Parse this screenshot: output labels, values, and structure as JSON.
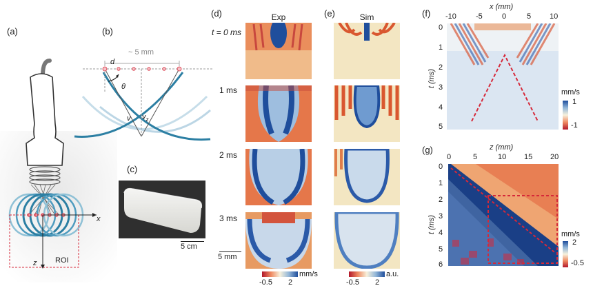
{
  "panels": {
    "a": {
      "label": "(a)",
      "axis_x": "x",
      "axis_z": "z",
      "roi": "ROI"
    },
    "b": {
      "label": "(b)",
      "span": "~ 5 mm",
      "d": "d",
      "theta": "θ",
      "v": "v",
      "vz": "v",
      "vz_sub": "z"
    },
    "c": {
      "label": "(c)",
      "scalebar": "5 cm"
    },
    "d": {
      "label": "(d)",
      "title": "Exp",
      "times": [
        "t = 0 ms",
        "1 ms",
        "2 ms",
        "3 ms"
      ],
      "scalebar": "5 mm",
      "colorbar": {
        "min": "-0.5",
        "max": "2",
        "unit": "mm/s"
      }
    },
    "e": {
      "label": "(e)",
      "title": "Sim",
      "colorbar": {
        "min": "-0.5",
        "max": "2",
        "unit": "a.u."
      }
    },
    "f": {
      "label": "(f)",
      "xlabel": "x (mm)",
      "ylabel": "t (ms)",
      "xticks": [
        "-10",
        "-5",
        "0",
        "5",
        "10"
      ],
      "yticks": [
        "0",
        "1",
        "2",
        "3",
        "4",
        "5"
      ],
      "colorbar": {
        "unit": "mm/s",
        "max": "1",
        "min": "-1"
      }
    },
    "g": {
      "label": "(g)",
      "xlabel": "z (mm)",
      "ylabel": "t (ms)",
      "xticks": [
        "0",
        "5",
        "10",
        "15",
        "20"
      ],
      "yticks": [
        "0",
        "1",
        "2",
        "3",
        "4",
        "5",
        "6"
      ],
      "colorbar": {
        "unit": "mm/s",
        "max": "2",
        "min": "-0.5"
      }
    }
  },
  "colors": {
    "red": "#c0392b",
    "orange": "#e8864a",
    "cream": "#f4ecd2",
    "lightblue": "#c5d6e8",
    "blue": "#2b5aa8",
    "dashed_red": "#d62839",
    "probe_blue": "#2c7fa3"
  }
}
